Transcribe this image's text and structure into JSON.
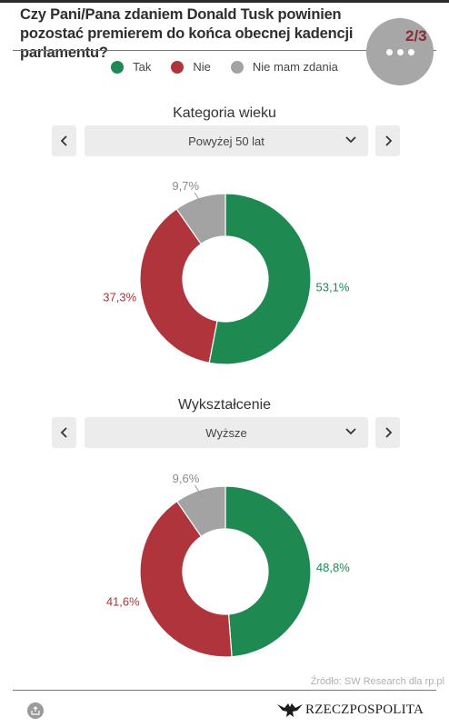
{
  "title": "Czy Pani/Pana zdaniem Donald Tusk powinien pozostać premierem do końca obecnej kadencji parlamentu?",
  "page_indicator": "2/3",
  "menu": {
    "icon": "more-dots-icon"
  },
  "legend": [
    {
      "label": "Tak",
      "color": "#1e8a52"
    },
    {
      "label": "Nie",
      "color": "#b0343b"
    },
    {
      "label": "Nie mam zdania",
      "color": "#a3a3a3"
    }
  ],
  "charts": [
    {
      "section_title": "Kategoria wieku",
      "selected_option": "Powyżej 50 lat",
      "prev_icon": "chevron-left-icon",
      "next_icon": "chevron-right-icon"
    },
    {
      "section_title": "Wykształcenie",
      "selected_option": "Wyższe",
      "prev_icon": "chevron-left-icon",
      "next_icon": "chevron-right-icon"
    }
  ],
  "chart_data": [
    {
      "type": "pie",
      "title": "Kategoria wieku",
      "filter": "Powyżej 50 lat",
      "categories": [
        "Tak",
        "Nie",
        "Nie mam zdania"
      ],
      "values": [
        53.1,
        37.3,
        9.7
      ],
      "labels": [
        "53,1%",
        "37,3%",
        "9,7%"
      ],
      "colors": [
        "#1e8a52",
        "#b0343b",
        "#a3a3a3"
      ],
      "donut": true
    },
    {
      "type": "pie",
      "title": "Wykształcenie",
      "filter": "Wyższe",
      "categories": [
        "Tak",
        "Nie",
        "Nie mam zdania"
      ],
      "values": [
        48.8,
        41.6,
        9.6
      ],
      "labels": [
        "48,8%",
        "41,6%",
        "9,6%"
      ],
      "colors": [
        "#1e8a52",
        "#b0343b",
        "#a3a3a3"
      ],
      "donut": true
    }
  ],
  "footer": {
    "source": "Źródło: SW Research dla rp.pl",
    "brand": "RZECZPOSPOLITA",
    "share_icon": "share-icon",
    "brand_icon": "eagle-logo-icon"
  }
}
